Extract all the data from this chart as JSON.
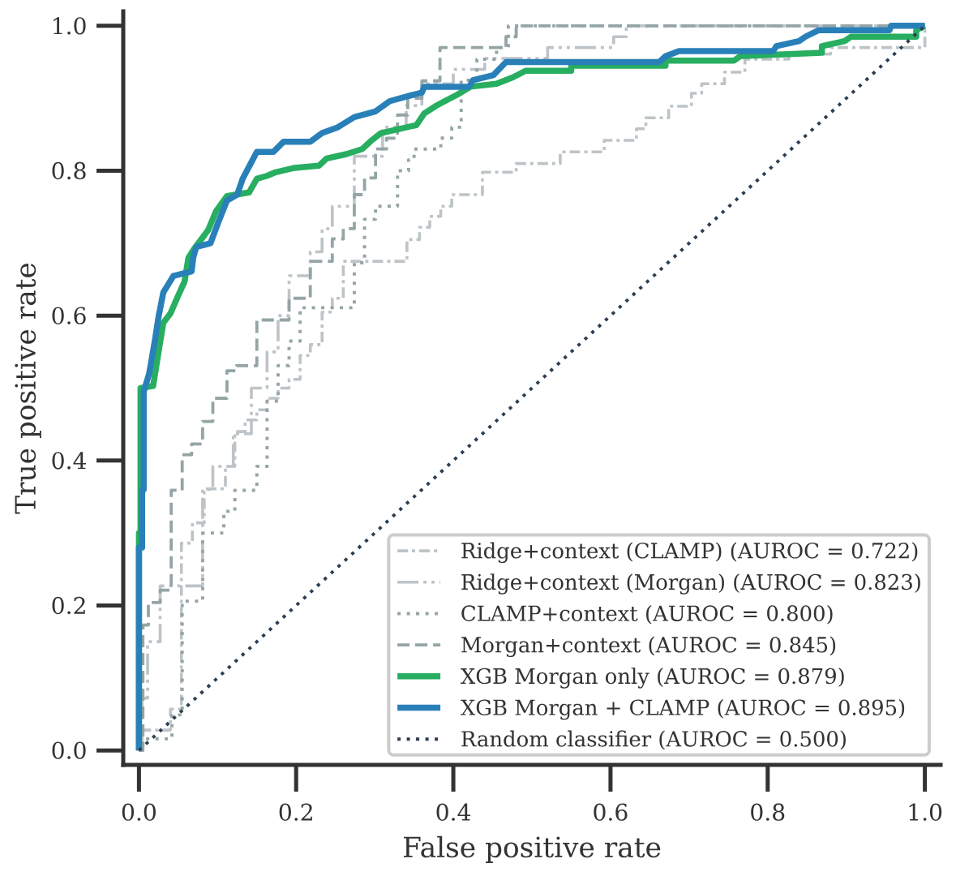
{
  "chart_data": {
    "type": "line",
    "xlabel": "False positive rate",
    "ylabel": "True positive rate",
    "xlim": [
      -0.02,
      1.02
    ],
    "ylim": [
      -0.02,
      1.02
    ],
    "xticks": [
      {
        "value": 0,
        "label": "0.0"
      },
      0.2,
      0.4,
      0.6,
      0.8,
      {
        "value": 1,
        "label": "1.0"
      }
    ],
    "yticks": [
      {
        "value": 0,
        "label": "0.0"
      },
      0.2,
      0.4,
      0.6,
      0.8,
      {
        "value": 1,
        "label": "1.0"
      }
    ],
    "legend": "bottom right",
    "series": [
      {
        "name": "Ridge+context (CLAMP) (AUROC = 0.722)",
        "color": "#bdc3c7",
        "line_style": "dashdot",
        "x": [
          0,
          0.004,
          0.004,
          0.04,
          0.04,
          0.054,
          0.054,
          0.068,
          0.068,
          0.083,
          0.083,
          0.11,
          0.11,
          0.122,
          0.122,
          0.135,
          0.135,
          0.15,
          0.15,
          0.163,
          0.163,
          0.177,
          0.177,
          0.191,
          0.191,
          0.205,
          0.205,
          0.218,
          0.218,
          0.233,
          0.233,
          0.246,
          0.246,
          0.26,
          0.26,
          0.341,
          0.341,
          0.357,
          0.357,
          0.37,
          0.37,
          0.384,
          0.384,
          0.398,
          0.398,
          0.437,
          0.437,
          0.48,
          0.48,
          0.536,
          0.536,
          0.592,
          0.592,
          0.633,
          0.633,
          0.645,
          0.645,
          0.674,
          0.674,
          0.703,
          0.703,
          0.716,
          0.716,
          0.745,
          0.745,
          0.771,
          0.771,
          0.827,
          0.827,
          0.88,
          0.88,
          1,
          1
        ],
        "values": [
          0,
          0,
          0.028,
          0.028,
          0.057,
          0.057,
          0.286,
          0.286,
          0.314,
          0.314,
          0.361,
          0.361,
          0.392,
          0.392,
          0.44,
          0.44,
          0.456,
          0.456,
          0.47,
          0.47,
          0.486,
          0.486,
          0.5,
          0.5,
          0.512,
          0.512,
          0.545,
          0.545,
          0.56,
          0.56,
          0.605,
          0.605,
          0.624,
          0.624,
          0.675,
          0.675,
          0.705,
          0.705,
          0.722,
          0.722,
          0.737,
          0.737,
          0.751,
          0.751,
          0.767,
          0.767,
          0.798,
          0.798,
          0.81,
          0.81,
          0.826,
          0.826,
          0.842,
          0.842,
          0.858,
          0.858,
          0.873,
          0.873,
          0.889,
          0.889,
          0.907,
          0.907,
          0.92,
          0.92,
          0.936,
          0.936,
          0.954,
          0.954,
          0.961,
          0.961,
          0.97,
          0.97,
          1
        ]
      },
      {
        "name": "Ridge+context (Morgan) (AUROC = 0.823)",
        "color": "#bdc3c7",
        "line_style": "dashdotdot",
        "x": [
          0,
          0.004,
          0.004,
          0.011,
          0.011,
          0.027,
          0.027,
          0.081,
          0.081,
          0.094,
          0.094,
          0.12,
          0.12,
          0.143,
          0.143,
          0.163,
          0.163,
          0.177,
          0.177,
          0.191,
          0.191,
          0.218,
          0.218,
          0.233,
          0.233,
          0.246,
          0.246,
          0.274,
          0.274,
          0.31,
          0.31,
          0.34,
          0.34,
          0.36,
          0.36,
          0.4,
          0.4,
          0.44,
          0.44,
          0.52,
          0.52,
          0.604,
          0.604,
          0.62,
          0.62,
          1
        ],
        "values": [
          0,
          0,
          0.072,
          0.072,
          0.15,
          0.15,
          0.227,
          0.227,
          0.36,
          0.36,
          0.392,
          0.392,
          0.437,
          0.437,
          0.5,
          0.5,
          0.55,
          0.55,
          0.6,
          0.6,
          0.655,
          0.655,
          0.688,
          0.688,
          0.72,
          0.72,
          0.751,
          0.751,
          0.82,
          0.82,
          0.86,
          0.86,
          0.89,
          0.89,
          0.92,
          0.92,
          0.94,
          0.94,
          0.955,
          0.955,
          0.97,
          0.97,
          0.985,
          0.985,
          1,
          1
        ]
      },
      {
        "name": "CLAMP+context (AUROC = 0.800)",
        "color": "#95a5a6",
        "line_style": "dotted",
        "x": [
          0,
          0.005,
          0.005,
          0.042,
          0.042,
          0.055,
          0.055,
          0.081,
          0.081,
          0.108,
          0.108,
          0.122,
          0.122,
          0.15,
          0.15,
          0.163,
          0.163,
          0.177,
          0.177,
          0.191,
          0.191,
          0.205,
          0.205,
          0.274,
          0.274,
          0.287,
          0.287,
          0.301,
          0.301,
          0.329,
          0.329,
          0.343,
          0.343,
          0.35,
          0.35,
          0.384,
          0.384,
          0.398,
          0.398,
          0.41,
          0.41,
          0.43,
          0.43,
          0.455,
          0.455,
          0.47,
          0.47,
          1
        ],
        "values": [
          0,
          0,
          0.016,
          0.016,
          0.049,
          0.049,
          0.206,
          0.206,
          0.3,
          0.3,
          0.33,
          0.33,
          0.359,
          0.359,
          0.392,
          0.392,
          0.482,
          0.482,
          0.531,
          0.531,
          0.565,
          0.565,
          0.611,
          0.611,
          0.673,
          0.673,
          0.733,
          0.733,
          0.751,
          0.751,
          0.8,
          0.8,
          0.815,
          0.815,
          0.83,
          0.83,
          0.845,
          0.845,
          0.86,
          0.86,
          0.925,
          0.925,
          0.954,
          0.954,
          0.97,
          0.97,
          1,
          1
        ]
      },
      {
        "name": "Morgan+context (AUROC = 0.845)",
        "color": "#95a5a6",
        "line_style": "dashed",
        "x": [
          0,
          0.005,
          0.005,
          0.012,
          0.012,
          0.027,
          0.027,
          0.041,
          0.041,
          0.055,
          0.055,
          0.067,
          0.067,
          0.081,
          0.081,
          0.094,
          0.094,
          0.112,
          0.112,
          0.124,
          0.124,
          0.15,
          0.15,
          0.191,
          0.191,
          0.218,
          0.218,
          0.246,
          0.246,
          0.26,
          0.26,
          0.274,
          0.274,
          0.287,
          0.287,
          0.301,
          0.301,
          0.315,
          0.315,
          0.329,
          0.329,
          0.342,
          0.342,
          0.36,
          0.36,
          0.383,
          0.383,
          0.467,
          0.467,
          0.48,
          0.48,
          1
        ],
        "values": [
          0,
          0,
          0.173,
          0.173,
          0.204,
          0.204,
          0.221,
          0.221,
          0.359,
          0.359,
          0.408,
          0.408,
          0.423,
          0.423,
          0.454,
          0.454,
          0.486,
          0.486,
          0.524,
          0.524,
          0.531,
          0.531,
          0.594,
          0.594,
          0.624,
          0.624,
          0.675,
          0.675,
          0.706,
          0.706,
          0.72,
          0.72,
          0.767,
          0.767,
          0.79,
          0.79,
          0.83,
          0.83,
          0.845,
          0.845,
          0.877,
          0.877,
          0.9,
          0.9,
          0.924,
          0.924,
          0.97,
          0.97,
          0.985,
          0.985,
          1,
          1
        ]
      },
      {
        "name": "XGB Morgan only (AUROC = 0.879)",
        "color": "#27ae60",
        "line_style": "solid",
        "x": [
          0,
          0,
          0.002,
          0.002,
          0.018,
          0.022,
          0.027,
          0.031,
          0.04,
          0.05,
          0.058,
          0.063,
          0.07,
          0.088,
          0.098,
          0.112,
          0.14,
          0.15,
          0.163,
          0.174,
          0.198,
          0.229,
          0.239,
          0.264,
          0.284,
          0.295,
          0.308,
          0.353,
          0.363,
          0.377,
          0.389,
          0.405,
          0.422,
          0.455,
          0.476,
          0.492,
          0.55,
          0.55,
          0.67,
          0.67,
          0.757,
          0.765,
          0.869,
          0.869,
          0.898,
          0.906,
          0.989,
          0.989,
          1
        ],
        "values": [
          0,
          0.3,
          0.3,
          0.5,
          0.503,
          0.53,
          0.564,
          0.59,
          0.603,
          0.628,
          0.647,
          0.68,
          0.692,
          0.718,
          0.744,
          0.765,
          0.77,
          0.789,
          0.793,
          0.798,
          0.804,
          0.807,
          0.817,
          0.823,
          0.83,
          0.841,
          0.852,
          0.863,
          0.879,
          0.889,
          0.896,
          0.905,
          0.916,
          0.92,
          0.929,
          0.938,
          0.938,
          0.945,
          0.945,
          0.952,
          0.952,
          0.958,
          0.963,
          0.972,
          0.979,
          0.985,
          0.985,
          0.994,
          1
        ]
      },
      {
        "name": "XGB Morgan + CLAMP (AUROC = 0.895)",
        "color": "#2980b9",
        "line_style": "solid",
        "x": [
          0,
          0,
          0.004,
          0.004,
          0.006,
          0.006,
          0.013,
          0.02,
          0.025,
          0.031,
          0.044,
          0.067,
          0.069,
          0.073,
          0.091,
          0.101,
          0.112,
          0.125,
          0.132,
          0.15,
          0.171,
          0.184,
          0.218,
          0.233,
          0.253,
          0.274,
          0.301,
          0.319,
          0.339,
          0.36,
          0.363,
          0.42,
          0.425,
          0.451,
          0.467,
          0.662,
          0.67,
          0.687,
          0.807,
          0.811,
          0.84,
          0.848,
          0.865,
          0.955,
          0.957,
          1
        ],
        "values": [
          0,
          0.28,
          0.28,
          0.36,
          0.36,
          0.495,
          0.52,
          0.564,
          0.599,
          0.632,
          0.655,
          0.661,
          0.68,
          0.695,
          0.7,
          0.729,
          0.759,
          0.767,
          0.789,
          0.826,
          0.826,
          0.84,
          0.84,
          0.852,
          0.86,
          0.874,
          0.882,
          0.896,
          0.902,
          0.908,
          0.916,
          0.916,
          0.925,
          0.932,
          0.95,
          0.95,
          0.958,
          0.965,
          0.965,
          0.972,
          0.979,
          0.985,
          0.994,
          0.994,
          1,
          1
        ]
      },
      {
        "name": "Random classifier (AUROC = 0.500)",
        "color": "#2c3e50",
        "line_style": "dotted",
        "x": [
          0,
          1
        ],
        "values": [
          0,
          1
        ]
      }
    ]
  }
}
